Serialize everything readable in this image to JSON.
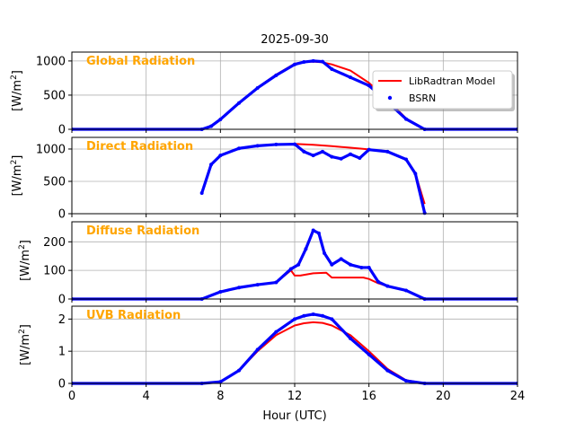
{
  "chart_data": {
    "type": "line",
    "title": "2025-09-30",
    "xlabel": "Hour (UTC)",
    "xlim": [
      0,
      24
    ],
    "xticks": [
      0,
      4,
      8,
      12,
      16,
      20,
      24
    ],
    "grid": true,
    "legend": {
      "location": "upper-right of first panel",
      "entries": [
        {
          "name": "LibRadtran Model",
          "style": "line",
          "color": "#FF0000"
        },
        {
          "name": "BSRN",
          "style": "marker",
          "color": "#0000FF"
        }
      ]
    },
    "panels": [
      {
        "title": "Global Radiation",
        "ylabel_main": "[W/m",
        "ylabel_sup": "2",
        "ylabel_end": "]",
        "ylim": [
          0,
          1130
        ],
        "yticks": [
          0,
          500,
          1000
        ],
        "series": [
          {
            "name": "LibRadtran Model",
            "x": [
              0,
              7,
              7.5,
              8,
              9,
              10,
              11,
              12,
              12.5,
              13,
              13.5,
              14,
              15,
              16,
              17,
              18,
              19,
              24
            ],
            "y": [
              0,
              0,
              40,
              140,
              380,
              610,
              800,
              960,
              985,
              990,
              980,
              950,
              860,
              680,
              430,
              160,
              0,
              0
            ]
          },
          {
            "name": "BSRN",
            "x": [
              0,
              7,
              7.5,
              8,
              9,
              10,
              11,
              12,
              12.5,
              13,
              13.5,
              14,
              15,
              16,
              17,
              18,
              19,
              24
            ],
            "y": [
              0,
              0,
              45,
              145,
              385,
              605,
              790,
              950,
              985,
              1000,
              990,
              880,
              760,
              640,
              400,
              150,
              0,
              0
            ]
          }
        ]
      },
      {
        "title": "Direct Radiation",
        "ylabel_main": "[W/m",
        "ylabel_sup": "2",
        "ylabel_end": "]",
        "ylim": [
          0,
          1180
        ],
        "yticks": [
          0,
          500,
          1000
        ],
        "series": [
          {
            "name": "LibRadtran Model",
            "x": [
              7,
              7.5,
              8,
              9,
              10,
              11,
              12,
              13,
              14,
              15,
              16,
              17,
              18,
              18.5,
              19
            ],
            "y": [
              320,
              760,
              900,
              1010,
              1050,
              1070,
              1080,
              1065,
              1045,
              1020,
              995,
              960,
              840,
              620,
              150
            ]
          },
          {
            "name": "BSRN",
            "x": [
              7,
              7.5,
              8,
              9,
              10,
              11,
              12,
              12.5,
              13,
              13.5,
              14,
              14.5,
              15,
              15.5,
              16,
              17,
              18,
              18.5,
              19
            ],
            "y": [
              320,
              760,
              900,
              1010,
              1050,
              1070,
              1075,
              960,
              900,
              960,
              880,
              850,
              920,
              860,
              990,
              960,
              840,
              620,
              10
            ]
          }
        ]
      },
      {
        "title": "Diffuse Radiation",
        "ylabel_main": "[W/m",
        "ylabel_sup": "2",
        "ylabel_end": "]",
        "ylim": [
          0,
          270
        ],
        "yticks": [
          0,
          100,
          200
        ],
        "series": [
          {
            "name": "LibRadtran Model",
            "x": [
              0,
              7,
              8,
              9,
              10,
              11,
              11.8,
              12,
              12.3,
              13,
              13.7,
              14,
              15,
              15.7,
              16,
              16.5,
              17,
              18,
              19,
              24
            ],
            "y": [
              0,
              0,
              25,
              40,
              50,
              58,
              100,
              82,
              82,
              90,
              92,
              75,
              75,
              75,
              70,
              55,
              45,
              30,
              0,
              0
            ]
          },
          {
            "name": "BSRN",
            "x": [
              0,
              7,
              8,
              9,
              10,
              11,
              11.8,
              12.2,
              12.6,
              13,
              13.3,
              13.6,
              14,
              14.5,
              15,
              15.6,
              16,
              16.5,
              17,
              18,
              19,
              24
            ],
            "y": [
              0,
              0,
              25,
              40,
              50,
              58,
              105,
              120,
              175,
              240,
              230,
              160,
              120,
              140,
              120,
              110,
              110,
              60,
              45,
              30,
              0,
              0
            ]
          }
        ]
      },
      {
        "title": "UVB Radiation",
        "ylabel_main": "[W/m",
        "ylabel_sup": "2",
        "ylabel_end": "]",
        "ylim": [
          0,
          2.4
        ],
        "yticks": [
          0,
          1,
          2
        ],
        "series": [
          {
            "name": "LibRadtran Model",
            "x": [
              0,
              7,
              8,
              9,
              10,
              11,
              12,
              12.5,
              13,
              13.5,
              14,
              15,
              16,
              17,
              18,
              19,
              24
            ],
            "y": [
              0,
              0,
              0.05,
              0.4,
              1.0,
              1.5,
              1.8,
              1.87,
              1.9,
              1.88,
              1.8,
              1.5,
              1.0,
              0.45,
              0.1,
              0,
              0
            ]
          },
          {
            "name": "BSRN",
            "x": [
              0,
              7,
              8,
              9,
              10,
              11,
              12,
              12.5,
              13,
              13.5,
              14,
              15,
              16,
              17,
              18,
              19,
              24
            ],
            "y": [
              0,
              0,
              0.05,
              0.4,
              1.05,
              1.6,
              2.0,
              2.1,
              2.15,
              2.1,
              2.0,
              1.4,
              0.9,
              0.4,
              0.08,
              0,
              0
            ]
          }
        ]
      }
    ]
  }
}
